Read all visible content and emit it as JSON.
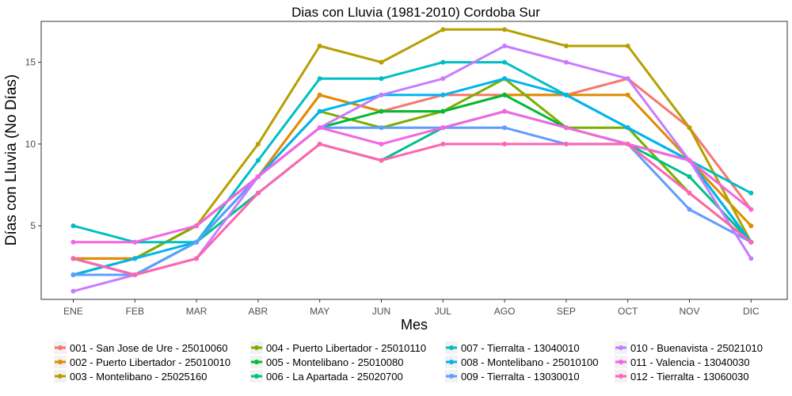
{
  "chart_data": {
    "type": "line",
    "title": "Dias con Lluvia (1981-2010)  Cordoba Sur",
    "xlabel": "Mes",
    "ylabel": "Días con Lluvia (No Días)",
    "categories": [
      "ENE",
      "FEB",
      "MAR",
      "ABR",
      "MAY",
      "JUN",
      "JUL",
      "AGO",
      "SEP",
      "OCT",
      "NOV",
      "DIC"
    ],
    "ylim": [
      0.5,
      17.5
    ],
    "yticks": [
      5,
      10,
      15
    ],
    "grid": false,
    "legend_position": "bottom",
    "series": [
      {
        "name": "001 - San Jose de Ure - 25010060",
        "color": "#F8766D",
        "values": [
          3,
          3,
          5,
          8,
          13,
          12,
          13,
          13,
          13,
          14,
          11,
          6
        ]
      },
      {
        "name": "002 - Puerto Libertador - 25010010",
        "color": "#DE8C00",
        "values": [
          3,
          3,
          5,
          8,
          13,
          12,
          12,
          13,
          13,
          13,
          9,
          5
        ]
      },
      {
        "name": "003 - Montelibano - 25025160",
        "color": "#B79F00",
        "values": [
          2,
          3,
          5,
          10,
          16,
          15,
          17,
          17,
          16,
          16,
          11,
          4
        ]
      },
      {
        "name": "004 - Puerto Libertador - 25010110",
        "color": "#7CAE00",
        "values": [
          2,
          3,
          5,
          8,
          12,
          11,
          12,
          14,
          11,
          11,
          7,
          4
        ]
      },
      {
        "name": "005 - Montelibano - 25010080",
        "color": "#00BA38",
        "values": [
          3,
          2,
          4,
          8,
          11,
          12,
          12,
          13,
          11,
          10,
          9,
          4
        ]
      },
      {
        "name": "006 - La Apartada - 25020700",
        "color": "#00C08B",
        "values": [
          3,
          2,
          4,
          7,
          10,
          9,
          11,
          12,
          11,
          10,
          8,
          4
        ]
      },
      {
        "name": "007 - Tierralta - 13040010",
        "color": "#00BFC4",
        "values": [
          5,
          4,
          4,
          9,
          14,
          14,
          15,
          15,
          13,
          11,
          9,
          7
        ]
      },
      {
        "name": "008 - Montelibano - 25010100",
        "color": "#00B4F0",
        "values": [
          2,
          3,
          4,
          8,
          12,
          13,
          13,
          14,
          13,
          11,
          9,
          4
        ]
      },
      {
        "name": "009 - Tierralta - 13030010",
        "color": "#619CFF",
        "values": [
          2,
          2,
          4,
          8,
          11,
          11,
          11,
          11,
          10,
          10,
          6,
          4
        ]
      },
      {
        "name": "010 - Buenavista - 25021010",
        "color": "#C77CFF",
        "values": [
          1,
          2,
          3,
          8,
          11,
          13,
          14,
          16,
          15,
          14,
          9,
          3
        ]
      },
      {
        "name": "011 - Valencia - 13040030",
        "color": "#F564E3",
        "values": [
          4,
          4,
          5,
          8,
          11,
          10,
          11,
          12,
          11,
          10,
          9,
          6
        ]
      },
      {
        "name": "012 - Tierralta - 13060030",
        "color": "#FF64B0",
        "values": [
          3,
          2,
          3,
          7,
          10,
          9,
          10,
          10,
          10,
          10,
          7,
          4
        ]
      }
    ]
  }
}
